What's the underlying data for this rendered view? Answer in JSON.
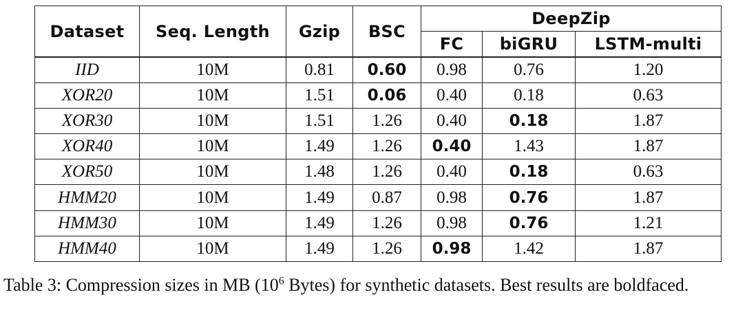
{
  "table": {
    "headers": {
      "dataset": "Dataset",
      "seq_length": "Seq. Length",
      "gzip": "Gzip",
      "bsc": "BSC",
      "deepzip": "DeepZip",
      "fc": "FC",
      "bigru": "biGRU",
      "lstm_multi": "LSTM-multi"
    },
    "rows": [
      {
        "dataset": "IID",
        "seq": "10M",
        "gzip": "0.81",
        "bsc": "0.60",
        "fc": "0.98",
        "bigru": "0.76",
        "lstm": "1.20",
        "best": "bsc"
      },
      {
        "dataset": "XOR20",
        "seq": "10M",
        "gzip": "1.51",
        "bsc": "0.06",
        "fc": "0.40",
        "bigru": "0.18",
        "lstm": "0.63",
        "best": "bsc"
      },
      {
        "dataset": "XOR30",
        "seq": "10M",
        "gzip": "1.51",
        "bsc": "1.26",
        "fc": "0.40",
        "bigru": "0.18",
        "lstm": "1.87",
        "best": "bigru"
      },
      {
        "dataset": "XOR40",
        "seq": "10M",
        "gzip": "1.49",
        "bsc": "1.26",
        "fc": "0.40",
        "bigru": "1.43",
        "lstm": "1.87",
        "best": "fc"
      },
      {
        "dataset": "XOR50",
        "seq": "10M",
        "gzip": "1.48",
        "bsc": "1.26",
        "fc": "0.40",
        "bigru": "0.18",
        "lstm": "0.63",
        "best": "bigru"
      },
      {
        "dataset": "HMM20",
        "seq": "10M",
        "gzip": "1.49",
        "bsc": "0.87",
        "fc": "0.98",
        "bigru": "0.76",
        "lstm": "1.87",
        "best": "bigru"
      },
      {
        "dataset": "HMM30",
        "seq": "10M",
        "gzip": "1.49",
        "bsc": "1.26",
        "fc": "0.98",
        "bigru": "0.76",
        "lstm": "1.21",
        "best": "bigru"
      },
      {
        "dataset": "HMM40",
        "seq": "10M",
        "gzip": "1.49",
        "bsc": "1.26",
        "fc": "0.98",
        "bigru": "1.42",
        "lstm": "1.87",
        "best": "fc"
      }
    ]
  },
  "caption": {
    "label": "Table 3:",
    "text_before_sup": "Compression sizes in MB (10",
    "sup": "6",
    "text_after_sup": " Bytes) for synthetic datasets. Best results are boldfaced."
  }
}
